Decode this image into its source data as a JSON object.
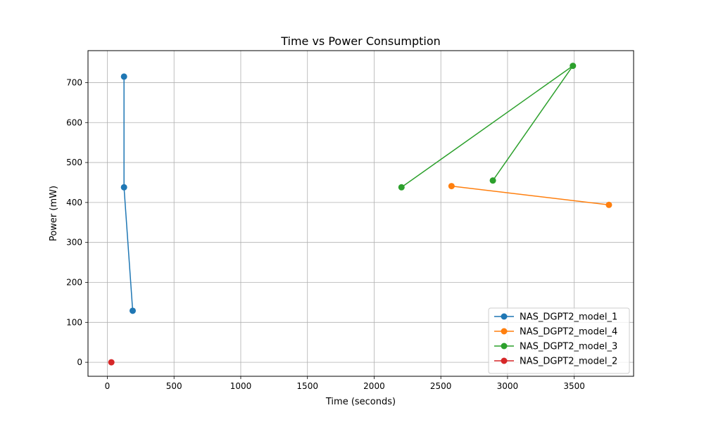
{
  "chart_data": {
    "type": "line",
    "title": "Time vs Power Consumption",
    "xlabel": "Time (seconds)",
    "ylabel": "Power (mW)",
    "xlim": [
      -145,
      3945
    ],
    "ylim": [
      -35,
      780
    ],
    "xticks": [
      0,
      500,
      1000,
      1500,
      2000,
      2500,
      3000,
      3500
    ],
    "yticks": [
      0,
      100,
      200,
      300,
      400,
      500,
      600,
      700
    ],
    "grid": true,
    "legend_position": "lower-right",
    "series": [
      {
        "name": "NAS_DGPT2_model_1",
        "color": "#1f77b4",
        "points": [
          [
            125,
            715
          ],
          [
            125,
            438
          ],
          [
            190,
            129
          ]
        ]
      },
      {
        "name": "NAS_DGPT2_model_4",
        "color": "#ff7f0e",
        "points": [
          [
            2580,
            441
          ],
          [
            3760,
            394
          ]
        ]
      },
      {
        "name": "NAS_DGPT2_model_3",
        "color": "#2ca02c",
        "points": [
          [
            2205,
            438
          ],
          [
            3490,
            742
          ],
          [
            2890,
            455
          ]
        ]
      },
      {
        "name": "NAS_DGPT2_model_2",
        "color": "#d62728",
        "points": [
          [
            30,
            0
          ]
        ]
      }
    ]
  }
}
